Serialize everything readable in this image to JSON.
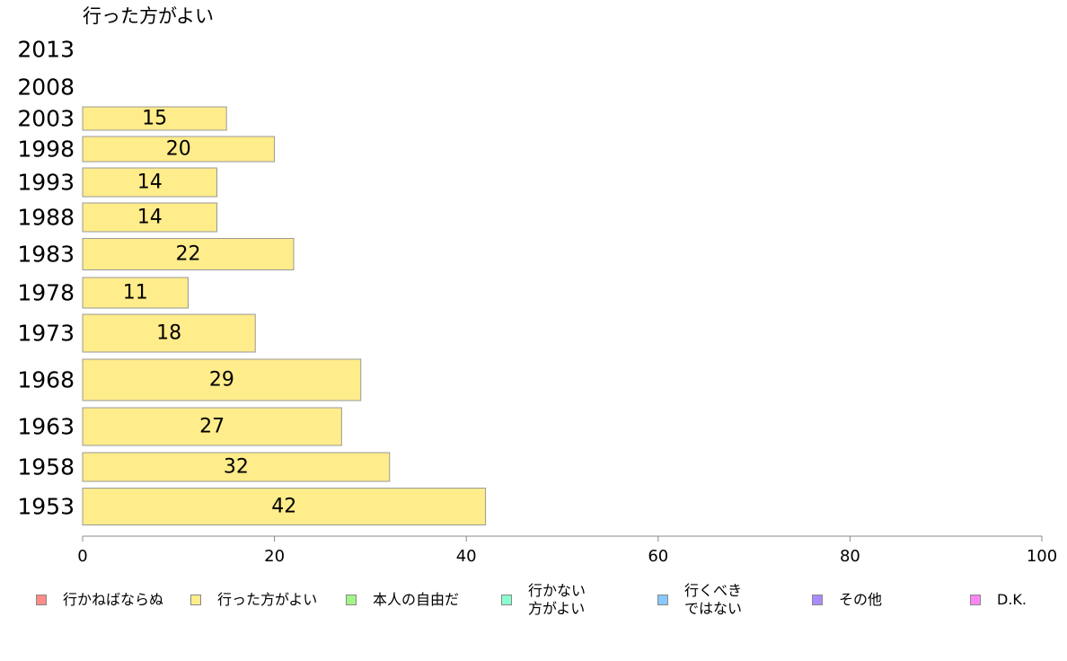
{
  "chart_data": {
    "type": "bar",
    "orientation": "horizontal",
    "title": "行った方がよい",
    "categories": [
      "2013",
      "2008",
      "2003",
      "1998",
      "1993",
      "1988",
      "1983",
      "1978",
      "1973",
      "1968",
      "1963",
      "1958",
      "1953"
    ],
    "values": [
      null,
      null,
      15,
      20,
      14,
      14,
      22,
      11,
      18,
      29,
      27,
      32,
      42
    ],
    "data_labels": [
      "",
      "",
      "15",
      "20",
      "14",
      "14",
      "22",
      "11",
      "18",
      "29",
      "27",
      "32",
      "42"
    ],
    "xlim": [
      0,
      100
    ],
    "xticks": [
      "0",
      "20",
      "40",
      "60",
      "80",
      "100"
    ],
    "grid": false,
    "bar_color": "#ffec8b",
    "bar_stroke": "#999999",
    "legend_position": "bottom",
    "legend": [
      {
        "label": "行かねばならぬ",
        "color": "#ff8c86"
      },
      {
        "label": "行った方がよい",
        "color": "#ffec8b"
      },
      {
        "label": "本人の自由だ",
        "color": "#a3f58a"
      },
      {
        "label": "行かない\n方がよい",
        "color": "#8affd0"
      },
      {
        "label": "行くべき\nではない",
        "color": "#86c8ff"
      },
      {
        "label": "その他",
        "color": "#a98aff"
      },
      {
        "label": "D.K.",
        "color": "#ff86f0"
      }
    ]
  }
}
